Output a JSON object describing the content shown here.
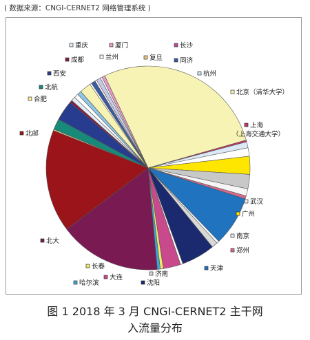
{
  "source_note": "( 数据来源：CNGI-CERNET2 网络管理系统 )",
  "caption": {
    "line1": "图 1  2018 年 3 月 CNGI-CERNET2 主干网",
    "line2": "入流量分布"
  },
  "chart_data": {
    "type": "pie",
    "title": "",
    "legend_placement": "around-slices",
    "slices": [
      {
        "label": "北京（清华大学）",
        "value": 29.0,
        "color": "#f7f3b4"
      },
      {
        "label": "上海（上海交通大学）",
        "value": 0.3,
        "color": "#c0366a"
      },
      {
        "label": "",
        "value": 1.0,
        "color": "#dbe9f5"
      },
      {
        "label": "武汉",
        "value": 1.4,
        "color": "#ffffff"
      },
      {
        "label": "广州",
        "value": 3.0,
        "color": "#ffe600"
      },
      {
        "label": "",
        "value": 2.4,
        "color": "#c8c8c8"
      },
      {
        "label": "南京",
        "value": 1.2,
        "color": "#f5f5f5"
      },
      {
        "label": "郑州",
        "value": 0.5,
        "color": "#d96a8a"
      },
      {
        "label": "天津",
        "value": 8.3,
        "color": "#1f73bf"
      },
      {
        "label": "",
        "value": 0.4,
        "color": "#ffffff"
      },
      {
        "label": "济南",
        "value": 1.0,
        "color": "#d8d8d8"
      },
      {
        "label": "沈阳",
        "value": 5.6,
        "color": "#1b2a6e"
      },
      {
        "label": "",
        "value": 0.4,
        "color": "#ffffff"
      },
      {
        "label": "大连",
        "value": 2.9,
        "color": "#c84a8c"
      },
      {
        "label": "长春",
        "value": 0.5,
        "color": "#f7e96a"
      },
      {
        "label": "哈尔滨",
        "value": 0.5,
        "color": "#3aa9d9"
      },
      {
        "label": "北大",
        "value": 17.0,
        "color": "#7a1a52"
      },
      {
        "label": "北邮",
        "value": 17.1,
        "color": "#9b1419"
      },
      {
        "label": "合肥",
        "value": 0.2,
        "color": "#ffef9a"
      },
      {
        "label": "北航",
        "value": 1.8,
        "color": "#178a7a"
      },
      {
        "label": "西安",
        "value": 3.4,
        "color": "#283c8f"
      },
      {
        "label": "成都",
        "value": 0.4,
        "color": "#8a1c3c"
      },
      {
        "label": "重庆",
        "value": 0.7,
        "color": "#e3eef8"
      },
      {
        "label": "兰州",
        "value": 0.7,
        "color": "#ffffff"
      },
      {
        "label": "",
        "value": 0.7,
        "color": "#8fc6e6"
      },
      {
        "label": "复旦",
        "value": 1.9,
        "color": "#f7f3b4"
      },
      {
        "label": "",
        "value": 0.3,
        "color": "#ffffff"
      },
      {
        "label": "同济",
        "value": 0.7,
        "color": "#3c5aa0"
      },
      {
        "label": "",
        "value": 0.3,
        "color": "#ffffff"
      },
      {
        "label": "杭州",
        "value": 0.7,
        "color": "#c8c8e8"
      },
      {
        "label": "长沙",
        "value": 0.3,
        "color": "#ffffff"
      },
      {
        "label": "厦门",
        "value": 0.5,
        "color": "#e89ac4"
      }
    ],
    "legend": [
      {
        "label": "重庆",
        "color": "#e3eef8"
      },
      {
        "label": "厦门",
        "color": "#e89ac4"
      },
      {
        "label": "长沙",
        "color": "#c84aa0"
      },
      {
        "label": "成都",
        "color": "#8a1c3c"
      },
      {
        "label": "兰州",
        "color": "#f4f4f4"
      },
      {
        "label": "复旦",
        "color": "#f0c880"
      },
      {
        "label": "同济",
        "color": "#3c5aa0"
      },
      {
        "label": "西安",
        "color": "#283c8f"
      },
      {
        "label": "杭州",
        "color": "#c8e8f5"
      },
      {
        "label": "北航",
        "color": "#178a7a"
      },
      {
        "label": "合肥",
        "color": "#ffef9a"
      },
      {
        "label": "北京（清华大学）",
        "color": "#f7f3b4"
      },
      {
        "label": "北邮",
        "color": "#9b1419"
      },
      {
        "label": "上海",
        "color": "#c0366a"
      },
      {
        "label": "（上海交通大学）",
        "color": ""
      },
      {
        "label": "武汉",
        "color": "#f0f0f0"
      },
      {
        "label": "广州",
        "color": "#ffe600"
      },
      {
        "label": "南京",
        "color": "#e8e8e8"
      },
      {
        "label": "郑州",
        "color": "#d96a8a"
      },
      {
        "label": "北大",
        "color": "#7a1a52"
      },
      {
        "label": "天津",
        "color": "#1f73bf"
      },
      {
        "label": "长春",
        "color": "#f7e96a"
      },
      {
        "label": "济南",
        "color": "#d8d8d8"
      },
      {
        "label": "大连",
        "color": "#c84a8c"
      },
      {
        "label": "沈阳",
        "color": "#1b2a6e"
      },
      {
        "label": "哈尔滨",
        "color": "#3aa9d9"
      }
    ]
  }
}
